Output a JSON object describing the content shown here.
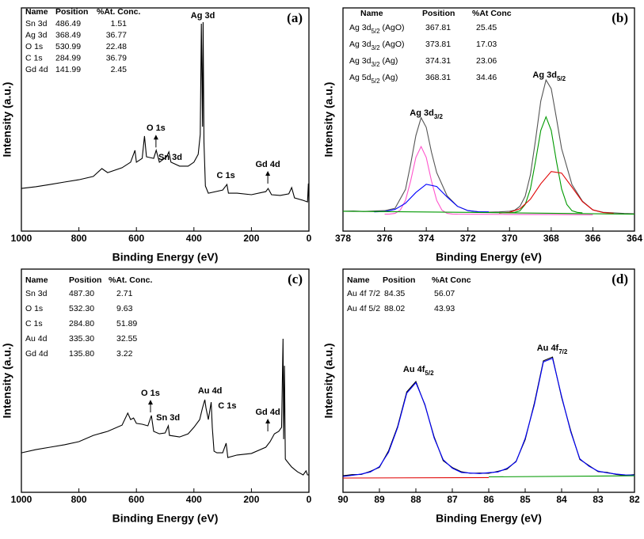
{
  "chart_data": [
    {
      "type": "line",
      "panel_label": "(a)",
      "xlabel": "Binding Energy (eV)",
      "ylabel": "Intensity (a.u.)",
      "xlim": [
        1000,
        0
      ],
      "xticks": [
        1000,
        800,
        600,
        400,
        200,
        0
      ],
      "ylim": [
        0,
        100
      ],
      "series": [
        {
          "color": "#000000",
          "x": [
            1000,
            950,
            900,
            850,
            800,
            750,
            720,
            700,
            650,
            620,
            605,
            600,
            580,
            572,
            565,
            540,
            531,
            520,
            495,
            487,
            480,
            450,
            420,
            400,
            385,
            378,
            374,
            370,
            368,
            365,
            360,
            350,
            300,
            285,
            280,
            250,
            200,
            150,
            142,
            130,
            100,
            70,
            60,
            50,
            20,
            5,
            2,
            0
          ],
          "values": [
            19.1,
            19.9,
            20.9,
            22.0,
            23.0,
            24.5,
            28.0,
            26.2,
            28.4,
            30.9,
            36.2,
            30.9,
            32.6,
            42.6,
            33.3,
            32.6,
            36.2,
            30.9,
            33.3,
            35.5,
            30.9,
            29.1,
            29.1,
            30.9,
            34.4,
            43.3,
            92.9,
            46.8,
            93.6,
            39.7,
            20.2,
            17.0,
            18.4,
            20.9,
            17.0,
            17.0,
            16.3,
            17.7,
            19.1,
            16.3,
            16.0,
            16.7,
            19.5,
            14.9,
            13.8,
            13.1,
            21.3,
            13.1
          ]
        }
      ],
      "annotations": [
        {
          "text": "Ag 3d",
          "x": 369,
          "y": 96.5
        },
        {
          "text": "O 1s",
          "x": 532,
          "y": 46,
          "arrow": true
        },
        {
          "text": "Sn 3d",
          "x": 482,
          "y": 33
        },
        {
          "text": "C 1s",
          "x": 289,
          "y": 24.8
        },
        {
          "text": "Gd 4d",
          "x": 143,
          "y": 29.8,
          "arrow": true
        }
      ],
      "table": {
        "header": [
          "Name",
          "Position",
          "%At. Conc."
        ],
        "rows": [
          [
            "Sn 3d",
            "486.49",
            "1.51"
          ],
          [
            "Ag 3d",
            "368.49",
            "36.77"
          ],
          [
            "O 1s",
            "530.99",
            "22.48"
          ],
          [
            "C 1s",
            "284.99",
            "36.79"
          ],
          [
            "Gd 4d",
            "141.99",
            "2.45"
          ]
        ]
      }
    },
    {
      "type": "line",
      "panel_label": "(b)",
      "xlabel": "Binding Energy (eV)",
      "ylabel": "Intensity (a.u.)",
      "xlim": [
        378,
        364
      ],
      "xticks": [
        378,
        376,
        374,
        372,
        370,
        368,
        366,
        364
      ],
      "ylim": [
        0,
        100
      ],
      "series": [
        {
          "color": "#555555",
          "x": [
            378,
            377.5,
            377,
            376.5,
            376,
            375.5,
            375,
            374.75,
            374.5,
            374.25,
            374,
            373.75,
            373.5,
            373,
            372.5,
            372,
            371.5,
            371,
            370.5,
            370,
            369.75,
            369.5,
            369.25,
            369,
            368.75,
            368.5,
            368.25,
            368,
            367.75,
            367.5,
            367,
            366.5,
            366,
            365.5,
            365,
            364.5,
            364
          ],
          "values": [
            8.9,
            9.0,
            8.8,
            9.0,
            9.2,
            10.2,
            18.7,
            30.0,
            42.8,
            50.8,
            46.5,
            35.4,
            26.2,
            15.8,
            11.1,
            9.2,
            8.6,
            8.5,
            8.6,
            8.9,
            9.4,
            11.1,
            15.6,
            25.2,
            40.9,
            58.3,
            67.7,
            63.8,
            50.7,
            36.9,
            20.8,
            13.4,
            9.5,
            8.4,
            8.2,
            7.9,
            7.8
          ]
        },
        {
          "color": "#ff55cc",
          "x": [
            376,
            375.75,
            375.5,
            375.25,
            375,
            374.75,
            374.5,
            374.25,
            374,
            373.75,
            373.5,
            373.25,
            373,
            372.75,
            372.5,
            370,
            368,
            366
          ],
          "values": [
            7.6,
            7.65,
            7.96,
            9.39,
            13.75,
            22.5,
            33.0,
            37.9,
            33.0,
            22.5,
            13.75,
            9.39,
            7.96,
            7.65,
            7.6,
            7.5,
            7.4,
            7.3
          ]
        },
        {
          "color": "#0000ff",
          "x": [
            376.5,
            376,
            375.5,
            375,
            374.5,
            374,
            373.5,
            373,
            372.5,
            372,
            371.5,
            371
          ],
          "values": [
            8.6,
            8.8,
            9.7,
            12.5,
            17.3,
            21.0,
            20.0,
            15.3,
            11.1,
            9.2,
            8.7,
            8.6
          ]
        },
        {
          "color": "#009900",
          "x": [
            370,
            369.75,
            369.5,
            369.25,
            369,
            368.75,
            368.5,
            368.25,
            368,
            367.75,
            367.5,
            367.25,
            367,
            366.75,
            366.5
          ],
          "values": [
            8.2,
            8.4,
            9.1,
            11.9,
            18.9,
            31.4,
            45.1,
            51.2,
            45.1,
            31.4,
            18.9,
            11.9,
            9.1,
            8.4,
            8.2
          ]
        },
        {
          "color": "#e00000",
          "x": [
            370.5,
            370,
            369.5,
            369,
            368.5,
            368,
            367.5,
            367,
            366.5,
            366,
            365.5,
            365
          ],
          "values": [
            8.1,
            8.4,
            10.0,
            14.3,
            21.2,
            26.7,
            26.0,
            19.7,
            13.2,
            9.5,
            8.3,
            8.0
          ]
        },
        {
          "color": "#009900",
          "x": [
            378,
            371,
            364
          ],
          "values": [
            8.9,
            8.3,
            7.6
          ]
        }
      ],
      "annotations": [
        {
          "text": [
            "Ag 3d",
            "3/2"
          ],
          "x": 374.0,
          "y": 52.8
        },
        {
          "text": [
            "Ag 3d",
            "5/2"
          ],
          "x": 368.1,
          "y": 69.9
        }
      ],
      "table": {
        "header": [
          "Name",
          "Position",
          "%At Conc"
        ],
        "rows": [
          [
            [
              "Ag 3d",
              "5/2",
              " (AgO)"
            ],
            "367.81",
            "25.45"
          ],
          [
            [
              "Ag 3d",
              "3/2",
              " (AgO)"
            ],
            "373.81",
            "17.03"
          ],
          [
            [
              "Ag 3d",
              "3/2",
              " (Ag)"
            ],
            "374.31",
            "23.06"
          ],
          [
            [
              "Ag 5d",
              "5/2",
              " (Ag)"
            ],
            "368.31",
            "34.46"
          ]
        ]
      }
    },
    {
      "type": "line",
      "panel_label": "(c)",
      "xlabel": "Binding Energy (eV)",
      "ylabel": "Intensity (a.u.)",
      "xlim": [
        1000,
        0
      ],
      "xticks": [
        1000,
        800,
        600,
        400,
        200,
        0
      ],
      "ylim": [
        0,
        100
      ],
      "series": [
        {
          "color": "#000000",
          "x": [
            1000,
            950,
            900,
            850,
            800,
            750,
            700,
            650,
            630,
            620,
            610,
            600,
            580,
            560,
            548,
            540,
            520,
            500,
            489,
            485,
            450,
            420,
            400,
            380,
            370,
            362,
            358,
            350,
            340,
            336,
            330,
            320,
            300,
            288,
            282,
            250,
            200,
            150,
            135,
            120,
            105,
            95,
            90,
            88,
            85,
            82,
            78,
            60,
            40,
            20,
            10,
            5,
            0
          ],
          "values": [
            17.7,
            19.1,
            20.2,
            21.3,
            22.7,
            25.5,
            27.3,
            30.1,
            35.5,
            32.6,
            33.3,
            30.9,
            30.5,
            29.8,
            34.4,
            27.3,
            26.2,
            26.6,
            29.8,
            25.5,
            24.8,
            26.2,
            29.1,
            32.6,
            37.9,
            41.5,
            37.9,
            32.6,
            40.4,
            29.1,
            18.4,
            17.7,
            17.7,
            22.0,
            15.6,
            16.7,
            17.4,
            20.2,
            22.7,
            26.2,
            27.3,
            29.1,
            68.8,
            23.8,
            56.7,
            14.9,
            14.2,
            11.3,
            9.2,
            7.8,
            9.6,
            7.8,
            7.8
          ]
        }
      ],
      "annotations": [
        {
          "text": "O 1s",
          "x": 551,
          "y": 44.3,
          "arrow": true
        },
        {
          "text": "Sn 3d",
          "x": 490,
          "y": 33.3
        },
        {
          "text": "Au 4d",
          "x": 344,
          "y": 45.4
        },
        {
          "text": "C 1s",
          "x": 284,
          "y": 38.7
        },
        {
          "text": "Gd 4d",
          "x": 143,
          "y": 35.8,
          "arrow": true
        }
      ],
      "table": {
        "header": [
          "Name",
          "Position",
          "%At. Conc."
        ],
        "rows": [
          [
            "Sn 3d",
            "487.30",
            "2.71"
          ],
          [
            "O 1s",
            "532.30",
            "9.63"
          ],
          [
            "C 1s",
            "284.80",
            "51.89"
          ],
          [
            "Au 4d",
            "335.30",
            "32.55"
          ],
          [
            "Gd 4d",
            "135.80",
            "3.22"
          ]
        ]
      }
    },
    {
      "type": "line",
      "panel_label": "(d)",
      "xlabel": "Binding Energy (eV)",
      "ylabel": "Intensity (a.u.)",
      "xlim": [
        90,
        82
      ],
      "xticks": [
        90,
        89,
        88,
        87,
        86,
        85,
        84,
        83,
        82
      ],
      "ylim": [
        0,
        100
      ],
      "series": [
        {
          "color": "#000000",
          "x": [
            90,
            89.75,
            89.5,
            89.25,
            89,
            88.75,
            88.5,
            88.25,
            88,
            87.75,
            87.5,
            87.25,
            87,
            86.75,
            86.5,
            86.25,
            86,
            85.75,
            85.5,
            85.25,
            85,
            84.75,
            84.5,
            84.25,
            84,
            83.75,
            83.5,
            83.25,
            83,
            82.75,
            82.5,
            82.25,
            82
          ],
          "values": [
            7.4,
            7.9,
            8.0,
            9.4,
            11.2,
            18.5,
            29.5,
            45.0,
            49.6,
            39.0,
            24.9,
            14.2,
            11.1,
            9.2,
            8.5,
            8.6,
            8.5,
            9.4,
            10.4,
            13.9,
            23.6,
            39.8,
            58.9,
            60.6,
            42.5,
            27.6,
            14.7,
            12.0,
            9.3,
            8.9,
            8.0,
            7.6,
            7.9
          ]
        },
        {
          "color": "#0000ff",
          "x": [
            90,
            89.75,
            89.5,
            89.25,
            89,
            88.75,
            88.5,
            88.25,
            88,
            87.75,
            87.5,
            87.25,
            87,
            86.75,
            86.5,
            86.25,
            86,
            85.75,
            85.5,
            85.25,
            85,
            84.75,
            84.5,
            84.25,
            84,
            83.75,
            83.5,
            83.25,
            83,
            82.75,
            82.5,
            82.25,
            82
          ],
          "values": [
            7.1,
            7.6,
            8.2,
            9.1,
            11.5,
            17.9,
            29.0,
            44.4,
            49.1,
            39.3,
            24.4,
            14.6,
            10.8,
            8.9,
            8.6,
            8.4,
            8.8,
            9.1,
            10.7,
            13.7,
            24.2,
            39.1,
            58.4,
            60.0,
            43.0,
            27.1,
            15.0,
            11.7,
            9.5,
            8.7,
            8.2,
            7.8,
            7.7
          ]
        },
        {
          "color": "#e00000",
          "x": [
            90,
            86
          ],
          "values": [
            6.4,
            6.6
          ]
        },
        {
          "color": "#009900",
          "x": [
            86,
            82
          ],
          "values": [
            6.9,
            7.4
          ]
        }
      ],
      "annotations": [
        {
          "text": [
            "Au 4f",
            "5/2"
          ],
          "x": 87.93,
          "y": 55.0
        },
        {
          "text": [
            "Au 4f",
            "7/2"
          ],
          "x": 84.26,
          "y": 64.5
        }
      ],
      "table": {
        "header": [
          "Name",
          "Position",
          "%At Conc"
        ],
        "rows": [
          [
            "Au 4f 7/2",
            "84.35",
            "56.07"
          ],
          [
            "Au 4f 5/2",
            "88.02",
            "43.93"
          ]
        ]
      }
    }
  ]
}
